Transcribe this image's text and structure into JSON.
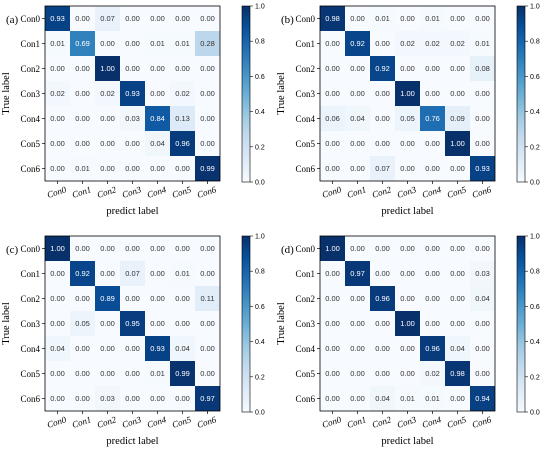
{
  "chart_data": [
    {
      "type": "heatmap",
      "panel_label": "(a)",
      "xlabel": "predict label",
      "ylabel": "True label",
      "categories": [
        "Con0",
        "Con1",
        "Con2",
        "Con3",
        "Con4",
        "Con5",
        "Con6"
      ],
      "values": [
        [
          "0.93",
          "0.00",
          "0.07",
          "0.00",
          "0.00",
          "0.00",
          "0.00"
        ],
        [
          "0.01",
          "0.69",
          "0.00",
          "0.00",
          "0.01",
          "0.01",
          "0.28"
        ],
        [
          "0.00",
          "0.00",
          "1.00",
          "0.00",
          "0.00",
          "0.00",
          "0.00"
        ],
        [
          "0.02",
          "0.00",
          "0.02",
          "0.93",
          "0.00",
          "0.02",
          "0.00"
        ],
        [
          "0.00",
          "0.00",
          "0.00",
          "0.03",
          "0.84",
          "0.13",
          "0.00"
        ],
        [
          "0.00",
          "0.00",
          "0.00",
          "0.00",
          "0.04",
          "0.96",
          "0.00"
        ],
        [
          "0.00",
          "0.01",
          "0.00",
          "0.00",
          "0.00",
          "0.00",
          "0.99"
        ]
      ],
      "colorbar_ticks": [
        "0.0",
        "0.2",
        "0.4",
        "0.6",
        "0.8",
        "1.0"
      ],
      "zlim": [
        0,
        1
      ]
    },
    {
      "type": "heatmap",
      "panel_label": "(b)",
      "xlabel": "predict label",
      "ylabel": "True label",
      "categories": [
        "Con0",
        "Con1",
        "Con2",
        "Con3",
        "Con4",
        "Con5",
        "Con6"
      ],
      "values": [
        [
          "0.98",
          "0.00",
          "0.01",
          "0.00",
          "0.01",
          "0.00",
          "0.00"
        ],
        [
          "0.00",
          "0.92",
          "0.00",
          "0.02",
          "0.02",
          "0.02",
          "0.01"
        ],
        [
          "0.00",
          "0.00",
          "0.92",
          "0.00",
          "0.00",
          "0.00",
          "0.08"
        ],
        [
          "0.00",
          "0.00",
          "0.00",
          "1.00",
          "0.00",
          "0.00",
          "0.00"
        ],
        [
          "0.06",
          "0.04",
          "0.00",
          "0.05",
          "0.76",
          "0.09",
          "0.00"
        ],
        [
          "0.00",
          "0.00",
          "0.00",
          "0.00",
          "0.00",
          "1.00",
          "0.00"
        ],
        [
          "0.00",
          "0.00",
          "0.07",
          "0.00",
          "0.00",
          "0.00",
          "0.93"
        ]
      ],
      "colorbar_ticks": [
        "0.0",
        "0.2",
        "0.4",
        "0.6",
        "0.8",
        "1.0"
      ],
      "zlim": [
        0,
        1
      ]
    },
    {
      "type": "heatmap",
      "panel_label": "(c)",
      "xlabel": "predict label",
      "ylabel": "True label",
      "categories": [
        "Con0",
        "Con1",
        "Con2",
        "Con3",
        "Con4",
        "Con5",
        "Con6"
      ],
      "values": [
        [
          "1.00",
          "0.00",
          "0.00",
          "0.00",
          "0.00",
          "0.00",
          "0.00"
        ],
        [
          "0.00",
          "0.92",
          "0.00",
          "0.07",
          "0.00",
          "0.01",
          "0.00"
        ],
        [
          "0.00",
          "0.00",
          "0.89",
          "0.00",
          "0.00",
          "0.00",
          "0.11"
        ],
        [
          "0.00",
          "0.05",
          "0.00",
          "0.95",
          "0.00",
          "0.00",
          "0.00"
        ],
        [
          "0.04",
          "0.00",
          "0.00",
          "0.00",
          "0.93",
          "0.04",
          "0.00"
        ],
        [
          "0.00",
          "0.00",
          "0.00",
          "0.00",
          "0.01",
          "0.99",
          "0.00"
        ],
        [
          "0.00",
          "0.00",
          "0.03",
          "0.00",
          "0.00",
          "0.00",
          "0.97"
        ]
      ],
      "colorbar_ticks": [
        "0.0",
        "0.2",
        "0.4",
        "0.6",
        "0.8",
        "1.0"
      ],
      "zlim": [
        0,
        1
      ]
    },
    {
      "type": "heatmap",
      "panel_label": "(d)",
      "xlabel": "predict label",
      "ylabel": "True label",
      "categories": [
        "Con0",
        "Con1",
        "Con2",
        "Con3",
        "Con4",
        "Con5",
        "Con6"
      ],
      "values": [
        [
          "1.00",
          "0.00",
          "0.00",
          "0.00",
          "0.00",
          "0.00",
          "0.00"
        ],
        [
          "0.00",
          "0.97",
          "0.00",
          "0.00",
          "0.00",
          "0.00",
          "0.03"
        ],
        [
          "0.00",
          "0.00",
          "0.96",
          "0.00",
          "0.00",
          "0.00",
          "0.04"
        ],
        [
          "0.00",
          "0.00",
          "0.00",
          "1.00",
          "0.00",
          "0.00",
          "0.00"
        ],
        [
          "0.00",
          "0.00",
          "0.00",
          "0.00",
          "0.96",
          "0.04",
          "0.00"
        ],
        [
          "0.00",
          "0.00",
          "0.00",
          "0.00",
          "0.02",
          "0.98",
          "0.00"
        ],
        [
          "0.00",
          "0.00",
          "0.04",
          "0.01",
          "0.01",
          "0.00",
          "0.94"
        ]
      ],
      "colorbar_ticks": [
        "0.0",
        "0.2",
        "0.4",
        "0.6",
        "0.8",
        "1.0"
      ],
      "zlim": [
        0,
        1
      ]
    }
  ],
  "colormap": {
    "name": "Blues",
    "low": "#f7fbff",
    "high": "#08306b",
    "text_dark": "#333333",
    "text_light": "#ffffff"
  }
}
